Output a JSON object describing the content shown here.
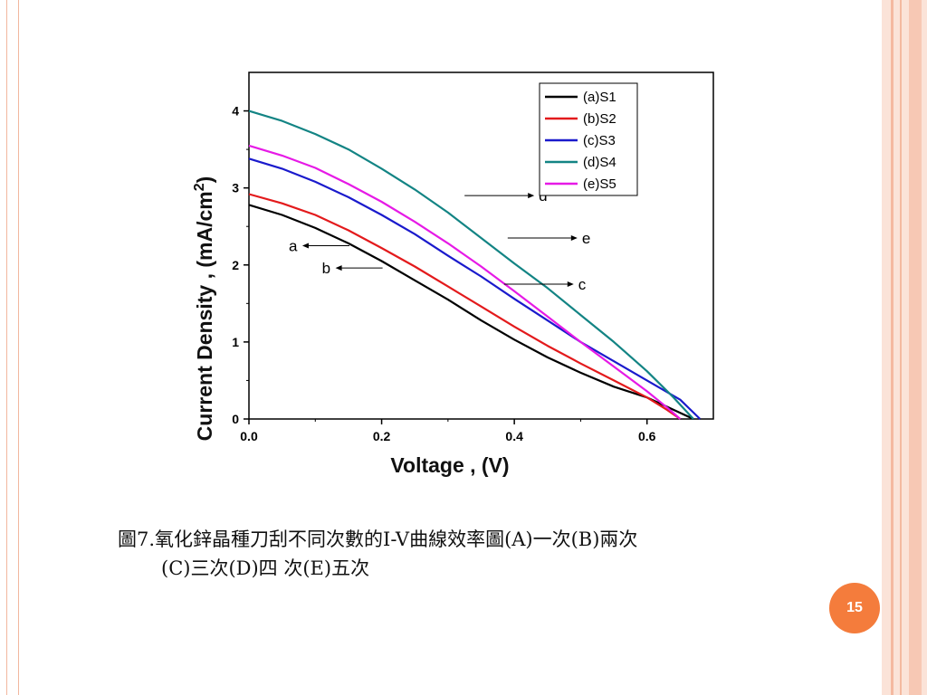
{
  "caption": {
    "line1": "圖7.氧化鋅晶種刀刮不同次數的I-V曲線效率圖(A)一次(B)兩次",
    "line2": "(C)三次(D)四 次(E)五次"
  },
  "page_number": "15",
  "chart_data": {
    "type": "line",
    "xlabel": "Voltage , (V)",
    "ylabel": "Current Density , (mA/cm2)",
    "xlim": [
      0,
      0.7
    ],
    "ylim": [
      0,
      4.5
    ],
    "x_ticks": [
      "0.0",
      "0.2",
      "0.4",
      "0.6"
    ],
    "y_ticks": [
      "0",
      "1",
      "2",
      "3",
      "4"
    ],
    "legend_position": "top-right",
    "series": [
      {
        "name": "(a)S1",
        "color": "#000000",
        "x": [
          0,
          0.05,
          0.1,
          0.15,
          0.2,
          0.25,
          0.3,
          0.35,
          0.4,
          0.45,
          0.5,
          0.55,
          0.6,
          0.65,
          0.67
        ],
        "y": [
          2.78,
          2.65,
          2.48,
          2.28,
          2.05,
          1.8,
          1.55,
          1.28,
          1.03,
          0.8,
          0.6,
          0.42,
          0.28,
          0.08,
          0.0
        ]
      },
      {
        "name": "(b)S2",
        "color": "#e31a1c",
        "x": [
          0,
          0.05,
          0.1,
          0.15,
          0.2,
          0.25,
          0.3,
          0.35,
          0.4,
          0.45,
          0.5,
          0.55,
          0.6,
          0.63,
          0.65
        ],
        "y": [
          2.92,
          2.8,
          2.65,
          2.45,
          2.22,
          1.98,
          1.72,
          1.46,
          1.2,
          0.95,
          0.72,
          0.5,
          0.28,
          0.12,
          0.0
        ]
      },
      {
        "name": "(c)S3",
        "color": "#1a1acc",
        "x": [
          0,
          0.05,
          0.1,
          0.15,
          0.2,
          0.25,
          0.3,
          0.35,
          0.4,
          0.45,
          0.5,
          0.55,
          0.6,
          0.65,
          0.68
        ],
        "y": [
          3.38,
          3.25,
          3.08,
          2.88,
          2.65,
          2.4,
          2.12,
          1.85,
          1.56,
          1.28,
          1.0,
          0.75,
          0.5,
          0.25,
          0.0
        ]
      },
      {
        "name": "(d)S4",
        "color": "#138484",
        "x": [
          0,
          0.05,
          0.1,
          0.15,
          0.2,
          0.25,
          0.3,
          0.35,
          0.4,
          0.45,
          0.5,
          0.55,
          0.6,
          0.64,
          0.67
        ],
        "y": [
          4.0,
          3.87,
          3.7,
          3.5,
          3.25,
          2.98,
          2.68,
          2.35,
          2.02,
          1.7,
          1.35,
          1.0,
          0.62,
          0.28,
          0.0
        ]
      },
      {
        "name": "(e)S5",
        "color": "#e61ae6",
        "x": [
          0,
          0.05,
          0.1,
          0.15,
          0.2,
          0.25,
          0.3,
          0.35,
          0.4,
          0.45,
          0.5,
          0.55,
          0.6,
          0.63,
          0.65
        ],
        "y": [
          3.55,
          3.42,
          3.26,
          3.05,
          2.82,
          2.56,
          2.28,
          1.98,
          1.66,
          1.33,
          1.0,
          0.68,
          0.36,
          0.15,
          0.0
        ]
      }
    ],
    "annotations": [
      {
        "label": "d",
        "x": 0.325,
        "y": 2.9
      },
      {
        "label": "e",
        "x": 0.39,
        "y": 2.35
      },
      {
        "label": "c",
        "x": 0.48,
        "y": 1.75
      },
      {
        "label": "a",
        "x": 0.09,
        "y": 2.25
      },
      {
        "label": "b",
        "x": 0.14,
        "y": 1.96
      }
    ]
  }
}
